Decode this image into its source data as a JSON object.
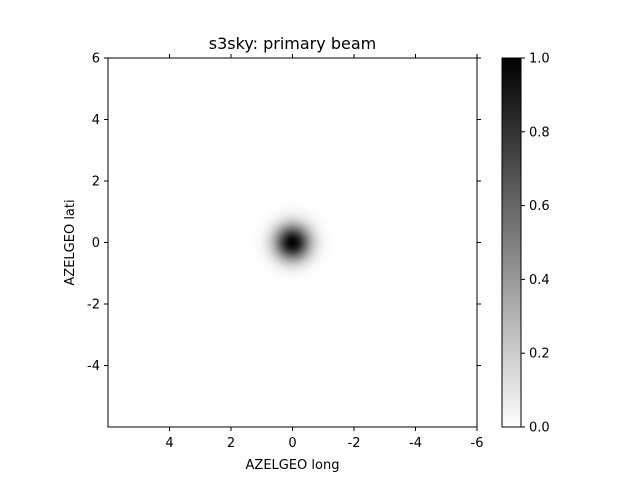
{
  "chart_data": {
    "type": "heatmap",
    "title": "s3sky: primary beam",
    "xlabel": "AZELGEO long",
    "ylabel": "AZELGEO lati",
    "xlim": [
      6,
      -6
    ],
    "ylim": [
      -6,
      6
    ],
    "xticks": [
      4,
      2,
      0,
      -2,
      -4,
      -6
    ],
    "xtick_labels": [
      "4",
      "2",
      "0",
      "-2",
      "-4",
      "-6"
    ],
    "yticks": [
      6,
      4,
      2,
      0,
      -2,
      -4
    ],
    "ytick_labels": [
      "6",
      "4",
      "2",
      "0",
      "-2",
      "-4"
    ],
    "colormap": "gray_r",
    "beam": {
      "center_x": 0,
      "center_y": 0,
      "peak": 1.0,
      "sigma": 0.4
    },
    "colorbar": {
      "range": [
        0.0,
        1.0
      ],
      "ticks": [
        0.0,
        0.2,
        0.4,
        0.6,
        0.8,
        1.0
      ],
      "tick_labels": [
        "0.0",
        "0.2",
        "0.4",
        "0.6",
        "0.8",
        "1.0"
      ]
    },
    "grid": false
  }
}
